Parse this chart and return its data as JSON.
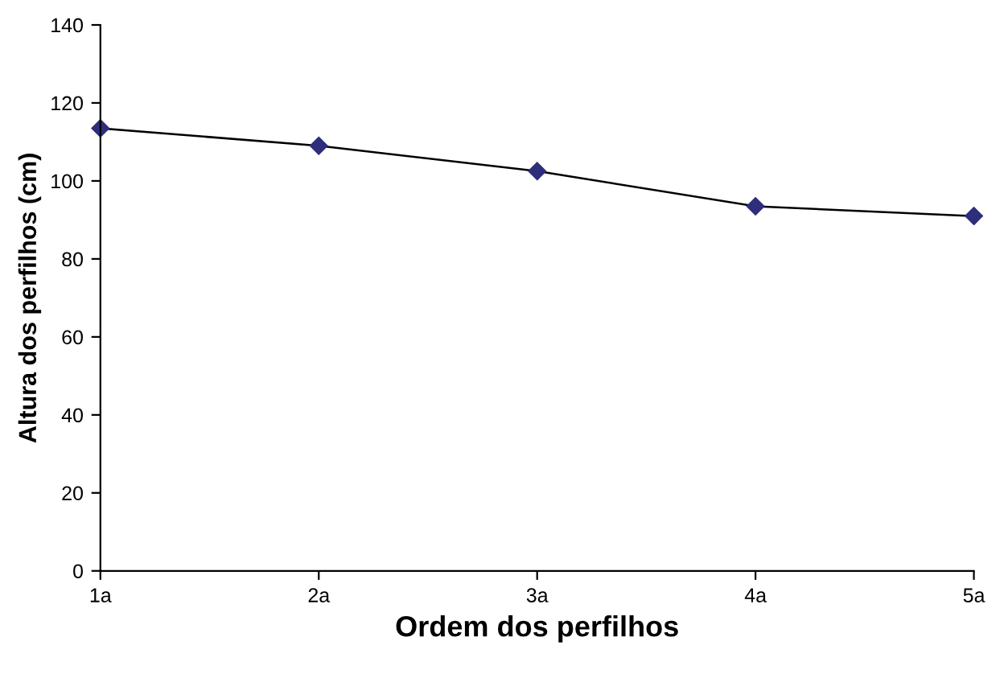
{
  "chart_data": {
    "type": "line",
    "xlabel": "Ordem dos perfilhos",
    "ylabel": "Altura dos perfilhos (cm)",
    "categories": [
      "1a",
      "2a",
      "3a",
      "4a",
      "5a"
    ],
    "series": [
      {
        "color": "#2e2e7a",
        "values": [
          113.5,
          109,
          102.5,
          93.5,
          91
        ]
      }
    ],
    "ylim": [
      0,
      140
    ],
    "yticks": [
      0,
      20,
      40,
      60,
      80,
      100,
      120,
      140
    ],
    "marker": "diamond",
    "line_style": "solid",
    "grid": false,
    "legend": false
  }
}
